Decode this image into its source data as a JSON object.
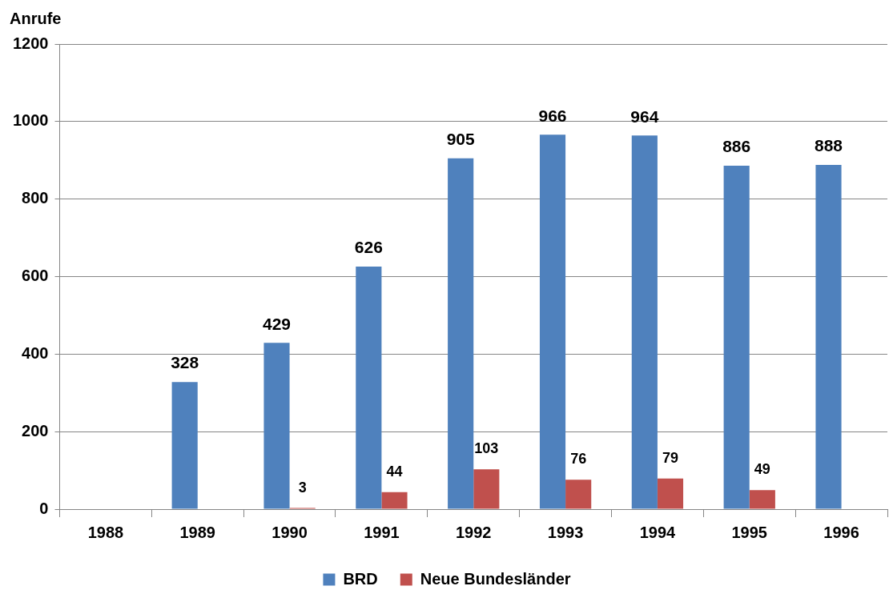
{
  "chart_data": {
    "type": "bar",
    "ylabel": "Anrufe",
    "categories": [
      "1988",
      "1989",
      "1990",
      "1991",
      "1992",
      "1993",
      "1994",
      "1995",
      "1996"
    ],
    "series": [
      {
        "name": "BRD",
        "color": "#4f81bd",
        "values": [
          null,
          328,
          429,
          626,
          905,
          966,
          964,
          886,
          888
        ]
      },
      {
        "name": "Neue Bundesländer",
        "color": "#c0504d",
        "values": [
          null,
          null,
          3,
          44,
          103,
          76,
          79,
          49,
          null
        ]
      }
    ],
    "ylim": [
      0,
      1200
    ],
    "yticks": [
      0,
      200,
      400,
      600,
      800,
      1000,
      1200
    ],
    "grid": "y",
    "legend": "bottom",
    "data_labels": true
  }
}
